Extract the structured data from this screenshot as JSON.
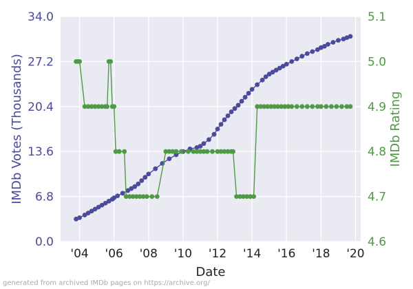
{
  "chart_data": {
    "type": "line",
    "xlabel": "Date",
    "ylabel_left": "IMDb Votes (Thousands)",
    "ylabel_right": "IMDb Rating",
    "xlim": [
      2002.9,
      2020.3
    ],
    "ylim_left": [
      0.0,
      34.0
    ],
    "ylim_right": [
      4.6,
      5.1
    ],
    "x_ticks": [
      2004,
      2006,
      2008,
      2010,
      2012,
      2014,
      2016,
      2018,
      2020
    ],
    "x_tick_labels": [
      "'04",
      "'06",
      "'08",
      "'10",
      "'12",
      "'14",
      "'16",
      "'18",
      "'20"
    ],
    "y_left_ticks": [
      0.0,
      6.8,
      13.6,
      20.4,
      27.2,
      34.0
    ],
    "y_left_tick_labels": [
      "0.0",
      "6.8",
      "13.6",
      "20.4",
      "27.2",
      "34.0"
    ],
    "y_right_ticks": [
      4.6,
      4.7,
      4.8,
      4.9,
      5.0,
      5.1
    ],
    "y_right_tick_labels": [
      "4.6",
      "4.7",
      "4.8",
      "4.9",
      "5.0",
      "5.1"
    ],
    "grid": true,
    "series": [
      {
        "axis": "left",
        "color": "#4b4b9b",
        "x": [
          2003.8,
          2004.0,
          2004.3,
          2004.5,
          2004.7,
          2004.9,
          2005.1,
          2005.3,
          2005.5,
          2005.7,
          2005.9,
          2006.0,
          2006.2,
          2006.5,
          2006.8,
          2007.0,
          2007.2,
          2007.4,
          2007.6,
          2007.8,
          2008.0,
          2008.4,
          2008.8,
          2009.2,
          2009.6,
          2010.0,
          2010.4,
          2010.8,
          2011.0,
          2011.2,
          2011.5,
          2011.8,
          2012.0,
          2012.2,
          2012.4,
          2012.6,
          2012.8,
          2013.0,
          2013.2,
          2013.4,
          2013.6,
          2013.8,
          2014.0,
          2014.3,
          2014.6,
          2014.8,
          2015.0,
          2015.2,
          2015.4,
          2015.6,
          2015.8,
          2016.0,
          2016.3,
          2016.6,
          2016.9,
          2017.2,
          2017.5,
          2017.8,
          2018.0,
          2018.2,
          2018.4,
          2018.7,
          2019.0,
          2019.3,
          2019.5,
          2019.7
        ],
        "values": [
          3.4,
          3.6,
          4.0,
          4.3,
          4.6,
          4.9,
          5.2,
          5.5,
          5.8,
          6.1,
          6.4,
          6.6,
          6.9,
          7.3,
          7.7,
          8.0,
          8.3,
          8.7,
          9.2,
          9.7,
          10.2,
          11.0,
          11.8,
          12.5,
          13.1,
          13.6,
          14.0,
          14.2,
          14.4,
          14.8,
          15.4,
          16.2,
          17.0,
          17.7,
          18.4,
          19.0,
          19.6,
          20.1,
          20.6,
          21.2,
          21.8,
          22.4,
          23.0,
          23.7,
          24.4,
          24.9,
          25.3,
          25.6,
          25.9,
          26.2,
          26.5,
          26.8,
          27.2,
          27.6,
          28.0,
          28.4,
          28.7,
          29.0,
          29.3,
          29.5,
          29.8,
          30.1,
          30.4,
          30.6,
          30.8,
          31.0
        ]
      },
      {
        "axis": "right",
        "color": "#4f9a44",
        "x": [
          2003.8,
          2003.9,
          2004.0,
          2004.3,
          2004.5,
          2004.7,
          2004.9,
          2005.1,
          2005.3,
          2005.5,
          2005.6,
          2005.7,
          2005.8,
          2005.9,
          2006.0,
          2006.1,
          2006.3,
          2006.6,
          2006.7,
          2006.9,
          2007.1,
          2007.3,
          2007.5,
          2007.7,
          2007.9,
          2008.2,
          2008.5,
          2009.0,
          2009.2,
          2009.4,
          2009.6,
          2009.9,
          2010.3,
          2010.6,
          2010.8,
          2011.0,
          2011.2,
          2011.4,
          2011.7,
          2012.0,
          2012.2,
          2012.4,
          2012.6,
          2012.8,
          2012.9,
          2013.1,
          2013.3,
          2013.5,
          2013.7,
          2013.9,
          2014.1,
          2014.3,
          2014.5,
          2014.7,
          2014.9,
          2015.1,
          2015.3,
          2015.5,
          2015.7,
          2015.9,
          2016.1,
          2016.3,
          2016.6,
          2016.9,
          2017.2,
          2017.5,
          2017.8,
          2018.0,
          2018.3,
          2018.6,
          2018.9,
          2019.2,
          2019.5,
          2019.7
        ],
        "values": [
          5.0,
          5.0,
          5.0,
          4.9,
          4.9,
          4.9,
          4.9,
          4.9,
          4.9,
          4.9,
          4.9,
          5.0,
          5.0,
          4.9,
          4.9,
          4.8,
          4.8,
          4.8,
          4.7,
          4.7,
          4.7,
          4.7,
          4.7,
          4.7,
          4.7,
          4.7,
          4.7,
          4.8,
          4.8,
          4.8,
          4.8,
          4.8,
          4.8,
          4.8,
          4.8,
          4.8,
          4.8,
          4.8,
          4.8,
          4.8,
          4.8,
          4.8,
          4.8,
          4.8,
          4.8,
          4.7,
          4.7,
          4.7,
          4.7,
          4.7,
          4.7,
          4.9,
          4.9,
          4.9,
          4.9,
          4.9,
          4.9,
          4.9,
          4.9,
          4.9,
          4.9,
          4.9,
          4.9,
          4.9,
          4.9,
          4.9,
          4.9,
          4.9,
          4.9,
          4.9,
          4.9,
          4.9,
          4.9,
          4.9
        ]
      }
    ]
  },
  "footer_text": "generated from archived IMDb pages on https://archive.org/"
}
